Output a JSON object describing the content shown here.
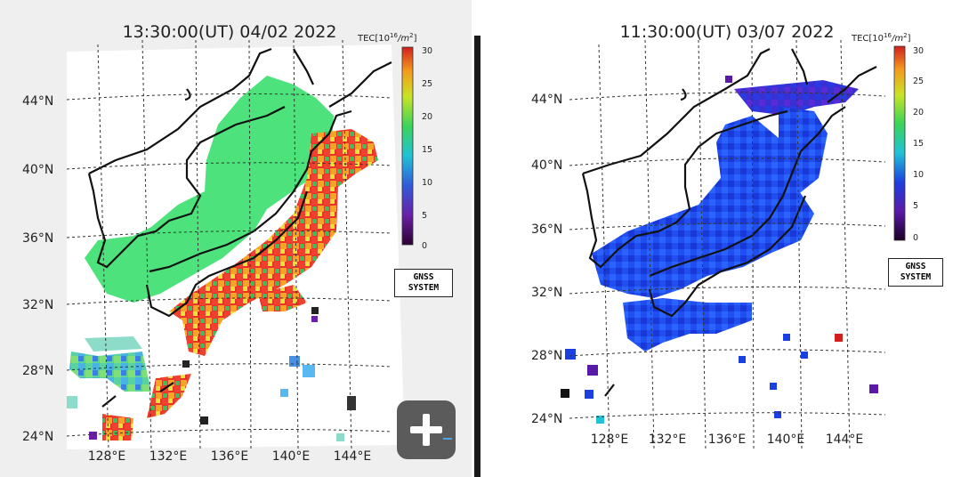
{
  "left_map": {
    "title": "13:30:00(UT) 04/02 2022",
    "lat_labels": [
      "44°N",
      "40°N",
      "36°N",
      "32°N",
      "28°N",
      "24°N"
    ],
    "lon_labels": [
      "128°E",
      "132°E",
      "136°E",
      "140°E",
      "144°E"
    ],
    "colorbar": {
      "title": "TEC[10",
      "title_exp": "16",
      "title_unit": "/m",
      "title_unit_exp": "2",
      "title_close": "]",
      "ticks": [
        "30",
        "25",
        "20",
        "15",
        "10",
        "5",
        "0"
      ]
    },
    "badge": {
      "line1": "GNSS",
      "line2": "SYSTEM"
    }
  },
  "right_map": {
    "title": "11:30:00(UT) 03/07 2022",
    "lat_labels": [
      "44°N",
      "40°N",
      "36°N",
      "32°N",
      "28°N",
      "24°N"
    ],
    "lon_labels": [
      "128°E",
      "132°E",
      "136°E",
      "140°E",
      "144°E"
    ],
    "colorbar": {
      "title": "TEC[10",
      "title_exp": "16",
      "title_unit": "/m",
      "title_unit_exp": "2",
      "title_close": "]",
      "ticks": [
        "30",
        "25",
        "20",
        "15",
        "10",
        "5",
        "0"
      ]
    },
    "badge": {
      "line1": "GNSS",
      "line2": "SYSTEM"
    }
  },
  "zoom_control": {
    "icon": "plus-icon"
  }
}
